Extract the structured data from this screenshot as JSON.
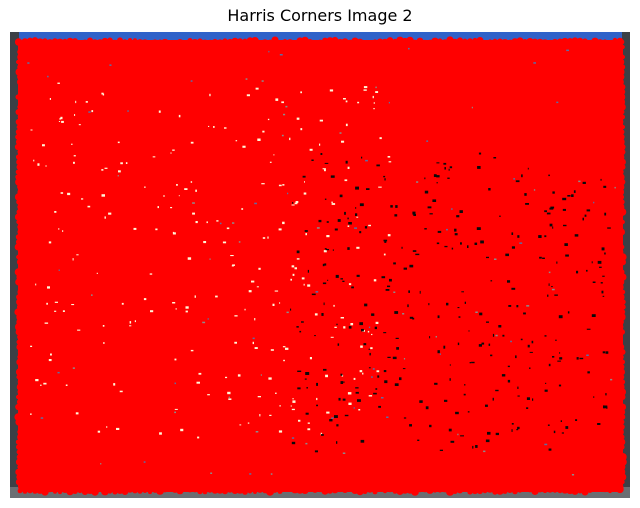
{
  "figure": {
    "title": "Harris Corners Image 2"
  },
  "image": {
    "description_colors": {
      "sky": "#2f62c9",
      "wall": "#9a9896",
      "frame_edge": "#3c4046",
      "ground": "#6b6e72",
      "corner_marker": "#ff0000",
      "highlight": "#fff6d8",
      "shadow": "#0a0a0a"
    },
    "marker_icon": "red-dot-marker"
  }
}
